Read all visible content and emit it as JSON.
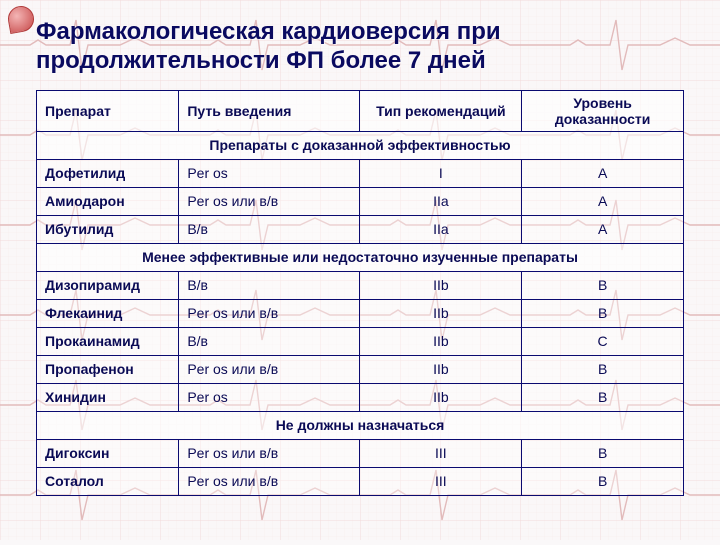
{
  "title": "Фармакологическая кардиоверсия при продолжительности ФП более 7 дней",
  "columns": [
    "Препарат",
    "Путь введения",
    "Тип рекомендаций",
    "Уровень доказанности"
  ],
  "section1": "Препараты с доказанной эффективностью",
  "rows1": [
    {
      "drug": "Дофетилид",
      "route": "Per os",
      "rec": "I",
      "ev": "A"
    },
    {
      "drug": "Амиодарон",
      "route": "Per os или в/в",
      "rec": "IIa",
      "ev": "A"
    },
    {
      "drug": "Ибутилид",
      "route": "В/в",
      "rec": "IIa",
      "ev": "A"
    }
  ],
  "section2": "Менее эффективные или недостаточно изученные препараты",
  "rows2": [
    {
      "drug": "Дизопирамид",
      "route": "В/в",
      "rec": "IIb",
      "ev": "B"
    },
    {
      "drug": "Флекаинид",
      "route": "Per os или в/в",
      "rec": "IIb",
      "ev": "B"
    },
    {
      "drug": "Прокаинамид",
      "route": "В/в",
      "rec": "IIb",
      "ev": "C"
    },
    {
      "drug": "Пропафенон",
      "route": "Per os  или в/в",
      "rec": "IIb",
      "ev": "B"
    },
    {
      "drug": "Хинидин",
      "route": "Per os",
      "rec": "IIb",
      "ev": "B"
    }
  ],
  "section3": "Не должны назначаться",
  "rows3": [
    {
      "drug": "Дигоксин",
      "route": "Per os или в/в",
      "rec": "III",
      "ev": "B"
    },
    {
      "drug": "Соталол",
      "route": "Per os или в/в",
      "rec": "III",
      "ev": "B"
    }
  ],
  "style": {
    "title_color": "#0a0a60",
    "border_color": "#0a0a70",
    "text_color": "#0a0a55",
    "bg_color": "#faf8f9",
    "grid_color": "#f3d4d4",
    "ecg_line_color": "#d89090",
    "title_fontsize": 24,
    "cell_fontsize": 14
  }
}
